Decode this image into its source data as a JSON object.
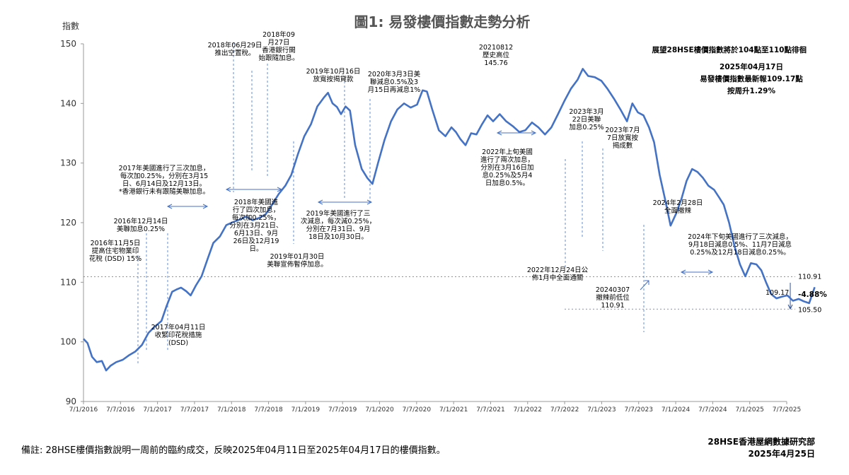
{
  "chart_data": {
    "type": "line",
    "title": "圖1: 易發樓價指數走勢分析",
    "ylabel": "指數",
    "ylim": [
      90,
      150
    ],
    "yticks": [
      "150",
      "140",
      "130",
      "120",
      "110",
      "100",
      "90"
    ],
    "xlim": [
      "2016-07-01",
      "2025-07-07"
    ],
    "xticks": [
      "7/1/2016",
      "7/7/2016",
      "7/1/2017",
      "7/7/2017",
      "7/1/2018",
      "7/7/2018",
      "7/1/2019",
      "7/7/2019",
      "7/1/2020",
      "7/7/2020",
      "7/1/2021",
      "7/7/2021",
      "7/1/2022",
      "7/7/2022",
      "7/1/2023",
      "7/7/2023",
      "7/1/2024",
      "7/7/2024",
      "7/1/2025",
      "7/7/2025"
    ],
    "series": [
      {
        "color": "#4472c4",
        "points": [
          [
            "2016-07-01",
            100.5
          ],
          [
            "2016-07-20",
            99.8
          ],
          [
            "2016-08-10",
            97.5
          ],
          [
            "2016-09-01",
            96.6
          ],
          [
            "2016-09-25",
            96.8
          ],
          [
            "2016-10-15",
            95.2
          ],
          [
            "2016-11-05",
            96.0
          ],
          [
            "2016-12-01",
            96.6
          ],
          [
            "2017-01-01",
            97.0
          ],
          [
            "2017-02-01",
            97.8
          ],
          [
            "2017-03-01",
            98.4
          ],
          [
            "2017-04-01",
            99.5
          ],
          [
            "2017-05-01",
            101.5
          ],
          [
            "2017-06-01",
            102.6
          ],
          [
            "2017-07-01",
            103.5
          ],
          [
            "2017-07-25",
            106.0
          ],
          [
            "2017-08-20",
            108.4
          ],
          [
            "2017-09-10",
            108.8
          ],
          [
            "2017-10-01",
            109.1
          ],
          [
            "2017-10-25",
            108.5
          ],
          [
            "2017-11-15",
            107.8
          ],
          [
            "2017-12-10",
            109.5
          ],
          [
            "2018-01-05",
            111.0
          ],
          [
            "2018-02-01",
            113.8
          ],
          [
            "2018-03-01",
            116.6
          ],
          [
            "2018-04-01",
            117.7
          ],
          [
            "2018-05-01",
            119.6
          ],
          [
            "2018-06-01",
            120.1
          ],
          [
            "2018-07-01",
            120.5
          ],
          [
            "2018-08-01",
            121.0
          ],
          [
            "2018-09-01",
            120.4
          ],
          [
            "2018-10-01",
            120.8
          ],
          [
            "2018-11-01",
            121.4
          ],
          [
            "2018-12-01",
            123.0
          ],
          [
            "2019-01-01",
            124.8
          ],
          [
            "2019-02-01",
            126.2
          ],
          [
            "2019-03-01",
            128.0
          ],
          [
            "2019-04-01",
            131.5
          ],
          [
            "2019-05-01",
            134.5
          ],
          [
            "2019-06-01",
            136.5
          ],
          [
            "2019-07-01",
            139.5
          ],
          [
            "2019-08-01",
            141.0
          ],
          [
            "2019-08-20",
            141.8
          ],
          [
            "2019-09-10",
            140.0
          ],
          [
            "2019-10-01",
            139.4
          ],
          [
            "2019-10-20",
            138.2
          ],
          [
            "2019-11-10",
            139.5
          ],
          [
            "2019-12-01",
            138.8
          ],
          [
            "2019-12-25",
            133.0
          ],
          [
            "2020-01-25",
            129.0
          ],
          [
            "2020-02-20",
            127.5
          ],
          [
            "2020-03-15",
            126.5
          ],
          [
            "2020-04-10",
            130.0
          ],
          [
            "2020-05-10",
            133.8
          ],
          [
            "2020-06-10",
            137.0
          ],
          [
            "2020-07-10",
            139.0
          ],
          [
            "2020-08-10",
            140.0
          ],
          [
            "2020-09-10",
            139.3
          ],
          [
            "2020-10-10",
            139.8
          ],
          [
            "2020-11-05",
            142.2
          ],
          [
            "2020-11-25",
            142.0
          ],
          [
            "2020-12-20",
            139.0
          ],
          [
            "2021-01-20",
            135.5
          ],
          [
            "2021-02-20",
            134.5
          ],
          [
            "2021-03-20",
            136.0
          ],
          [
            "2021-04-10",
            135.2
          ],
          [
            "2021-05-01",
            134.0
          ],
          [
            "2021-05-25",
            133.0
          ],
          [
            "2021-06-20",
            135.0
          ],
          [
            "2021-07-15",
            134.8
          ],
          [
            "2021-08-10",
            136.5
          ],
          [
            "2021-09-05",
            138.0
          ],
          [
            "2021-10-01",
            137.0
          ],
          [
            "2021-11-01",
            138.2
          ],
          [
            "2021-12-01",
            137.0
          ],
          [
            "2022-01-01",
            136.2
          ],
          [
            "2022-02-01",
            135.2
          ],
          [
            "2022-03-01",
            135.5
          ],
          [
            "2022-04-01",
            136.8
          ],
          [
            "2022-05-01",
            136.0
          ],
          [
            "2022-06-01",
            134.8
          ],
          [
            "2022-07-01",
            136.0
          ],
          [
            "2022-08-01",
            138.2
          ],
          [
            "2022-09-01",
            140.5
          ],
          [
            "2022-10-01",
            142.5
          ],
          [
            "2022-11-01",
            144.0
          ],
          [
            "2022-11-25",
            145.8
          ],
          [
            "2022-12-20",
            144.6
          ],
          [
            "2023-01-20",
            144.4
          ],
          [
            "2023-02-20",
            143.8
          ],
          [
            "2023-03-20",
            142.5
          ],
          [
            "2023-04-20",
            140.8
          ],
          [
            "2023-05-20",
            139.0
          ],
          [
            "2023-06-20",
            137.0
          ],
          [
            "2023-07-15",
            140.0
          ],
          [
            "2023-08-10",
            138.5
          ],
          [
            "2023-09-05",
            138.0
          ],
          [
            "2023-10-01",
            136.0
          ],
          [
            "2023-10-25",
            133.5
          ],
          [
            "2023-11-20",
            128.0
          ],
          [
            "2023-12-15",
            124.0
          ],
          [
            "2024-01-10",
            119.5
          ],
          [
            "2024-02-05",
            121.5
          ],
          [
            "2024-03-01",
            124.0
          ],
          [
            "2024-03-25",
            127.0
          ],
          [
            "2024-04-20",
            129.0
          ],
          [
            "2024-05-15",
            128.5
          ],
          [
            "2024-06-10",
            127.5
          ],
          [
            "2024-07-05",
            126.2
          ],
          [
            "2024-08-01",
            125.5
          ],
          [
            "2024-08-25",
            124.2
          ],
          [
            "2024-09-15",
            123.0
          ],
          [
            "2024-10-10",
            120.0
          ],
          [
            "2024-11-05",
            116.0
          ],
          [
            "2024-11-30",
            113.0
          ],
          [
            "2024-12-25",
            111.0
          ],
          [
            "2025-01-20",
            113.2
          ],
          [
            "2025-02-15",
            113.0
          ],
          [
            "2025-03-10",
            112.0
          ],
          [
            "2025-04-01",
            110.0
          ],
          [
            "2025-04-25",
            108.0
          ],
          [
            "2025-05-20",
            107.3
          ],
          [
            "2025-06-15",
            107.6
          ],
          [
            "2025-07-10",
            107.8
          ],
          [
            "2025-08-05",
            106.9
          ],
          [
            "2025-09-01",
            107.2
          ],
          [
            "2025-09-25",
            106.8
          ],
          [
            "2025-10-20",
            106.5
          ],
          [
            "2025-11-15",
            109.17
          ]
        ]
      }
    ],
    "ref_lines": [
      {
        "value": 110.91,
        "label": "110.91"
      },
      {
        "value": 105.5,
        "label": "105.50"
      }
    ],
    "end_label": "109.17",
    "change_label": "-4.88%",
    "annotations": {
      "a1": [
        "2016年11月5日",
        "提高住宅物業印",
        "花稅 (DSD) 15%"
      ],
      "a2": [
        "2016年12月14日",
        "美聯加息0.25%"
      ],
      "a3": [
        "2017年美國進行了三次加息，",
        "每次加0.25%，分別在3月15",
        "日、6月14日及12月13日。",
        "*香港銀行未有跟隨美聯加息。"
      ],
      "a4": [
        "2017年04月11日",
        "收緊印花稅措施",
        "(DSD)"
      ],
      "a5": [
        "2018年06月29日",
        "推出空置稅。"
      ],
      "a6": [
        "2018年09",
        "月27日",
        "香港銀行開",
        "始跟隨加息。"
      ],
      "a7": [
        "2018年美國進",
        "行了四次加息，",
        "每次加0.25%，",
        "分別在3月21日、",
        "6月13日、9月",
        "26日及12月19",
        "日。"
      ],
      "a8": [
        "2019年01月30日",
        "美聯宣佈暫停加息。"
      ],
      "a9": [
        "2019年10月16日",
        "放寬按揭貸款"
      ],
      "a10": [
        "2019年美國進行了三",
        "次減息，每次減0.25%，",
        "分別在7月31日、9月",
        "18日及10月30日。"
      ],
      "a11": [
        "2020年3月3日美",
        "聯減息0.5%及3",
        "月15日再減息1%"
      ],
      "a12": [
        "20210812",
        "歷史高位",
        "145.76"
      ],
      "a13": [
        "2022年上旬美國",
        "進行了兩次加息，",
        "分別在3月16日加",
        "息0.25%及5月4",
        "日加息0.5%。"
      ],
      "a14": [
        "2022年12月24日公",
        "佈1月中全面通關"
      ],
      "a15": [
        "2023年3月",
        "22日美聯",
        "加息0.25%"
      ],
      "a16": [
        "2023年7月",
        "7日放寬按",
        "揭成數"
      ],
      "a17": [
        "2024年2月28日",
        "全面撤辣"
      ],
      "a18": [
        "2024年下旬美國進行了三次減息，",
        "9月18日減息0.5%、11月7日減息",
        "0.25%及12月18日減息0.25%。"
      ],
      "a19": [
        "20240307",
        "撤辣前低位",
        "110.91"
      ],
      "outlook": "展望28HSE樓價指數將於104點至110點徘徊",
      "latest_date": "2025年04月17日",
      "latest_val": "易發樓價指數最新報109.17點",
      "latest_chg": "按周升1.29%"
    },
    "colors": {
      "line": "#4472c4",
      "guide": "#4472c4",
      "axis": "#999999"
    }
  },
  "footer": {
    "note": "備註: 28HSE樓價指數說明一周前的臨約成交，反映2025年04月11日至2025年04月17日的樓價指數。",
    "credit_line1": "28HSE香港屋網數據研究部",
    "credit_line2": "2025年4月25日"
  }
}
